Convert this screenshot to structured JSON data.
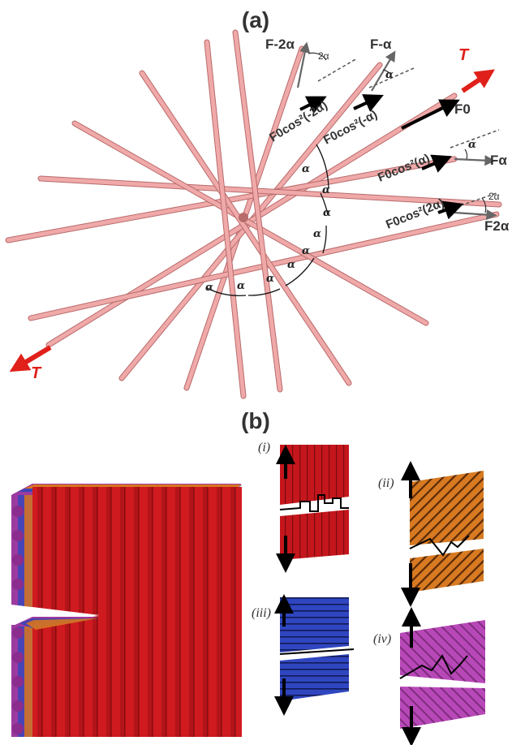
{
  "panel_a": {
    "label": "(a)",
    "force_labels": {
      "f_minus_2a": "F-2α",
      "f_minus_a": "F-α",
      "f_0": "F0",
      "f_a": "Fα",
      "f_2a": "F2α"
    },
    "component_labels": {
      "c_minus_2a": "F0cos²(-2α)",
      "c_minus_a": "F0cos²(-α)",
      "c_a": "F0cos²(α)",
      "c_2a": "F0cos²(2α)"
    },
    "tension_label": "T",
    "angle_symbol": "α",
    "two_alpha": "2α",
    "colors": {
      "fiber": "#f0a9a9",
      "fiber_edge": "#b86b6b",
      "tension": "#e0201a"
    }
  },
  "panel_b": {
    "label": "(b)",
    "sub_labels": {
      "i": "(i)",
      "ii": "(ii)",
      "iii": "(iii)",
      "iv": "(iv)"
    },
    "colors": {
      "red": "#c4161c",
      "orange": "#d2691e",
      "blue": "#2a3fb5",
      "purple": "#b03cb0"
    }
  }
}
